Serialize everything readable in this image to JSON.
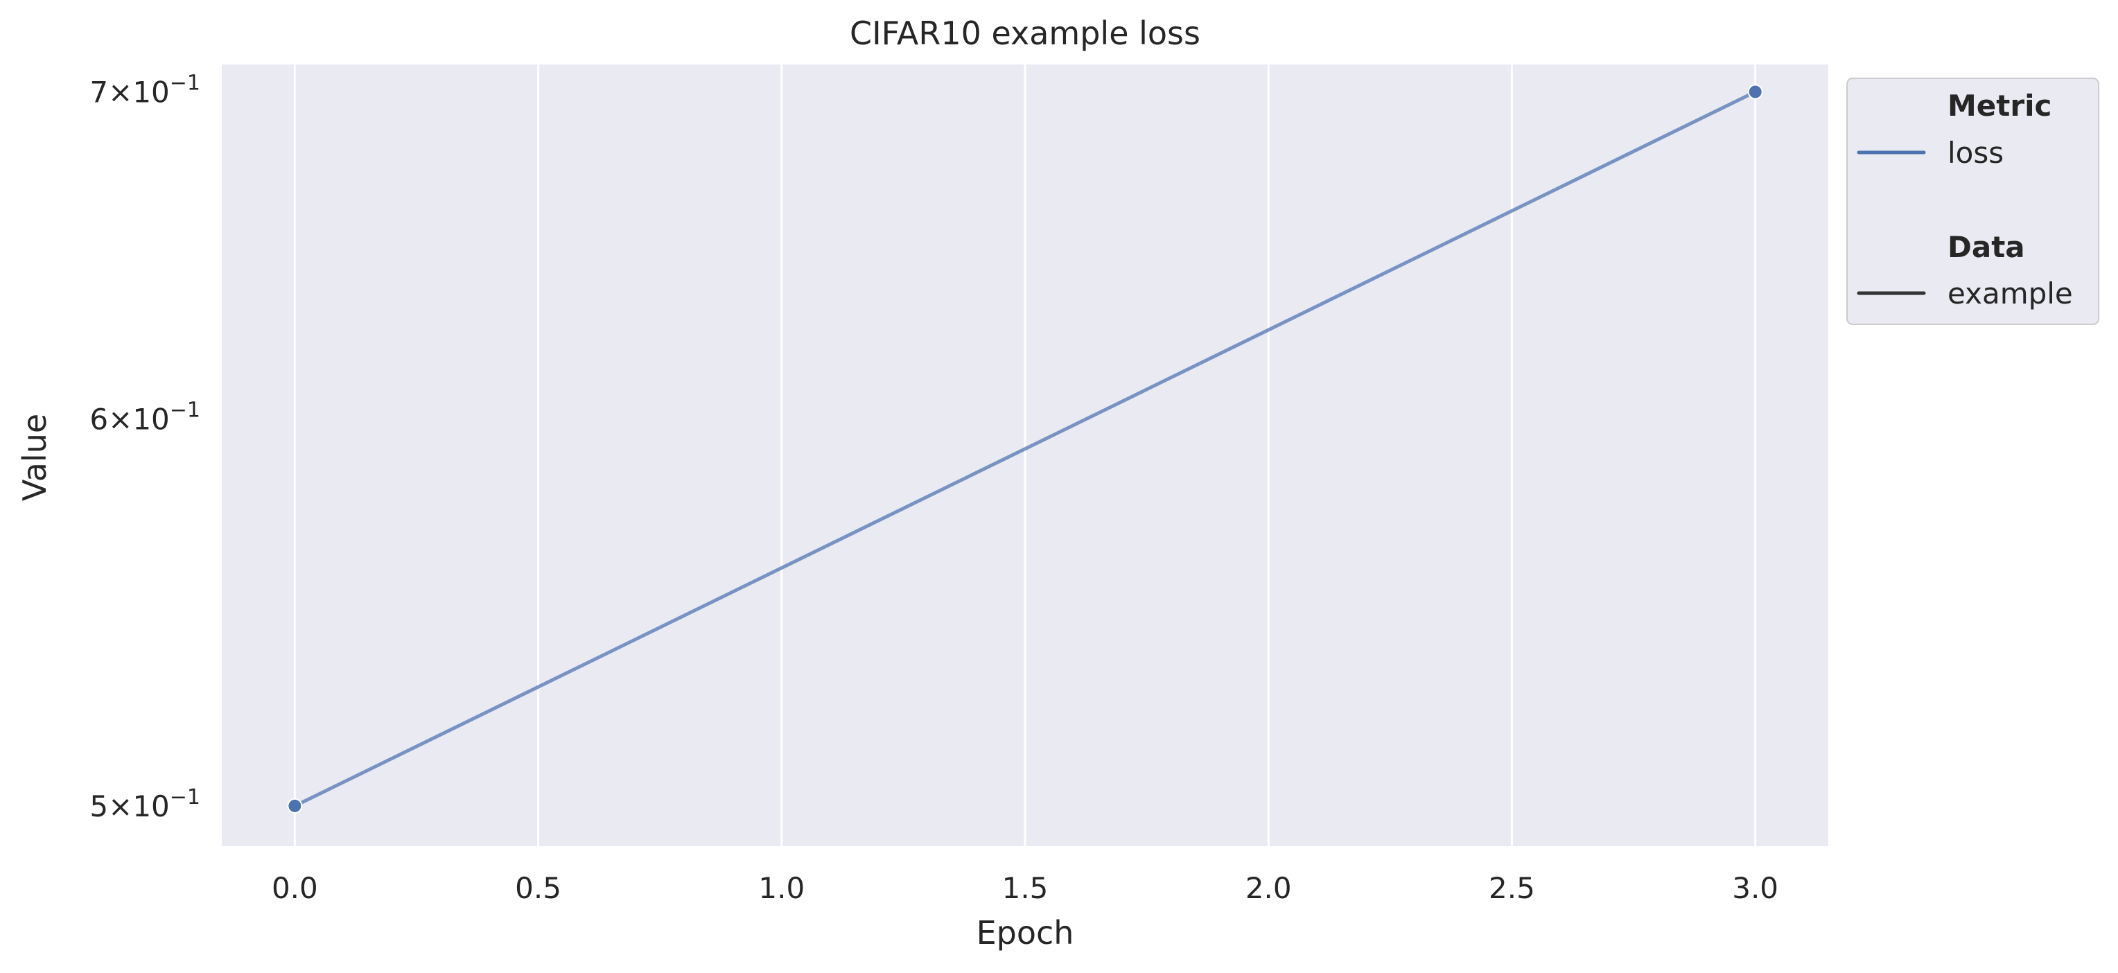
{
  "chart_data": {
    "type": "line",
    "title": "CIFAR10 example loss",
    "xlabel": "Epoch",
    "ylabel": "Value",
    "xlim": [
      -0.15,
      3.15
    ],
    "ylim": [
      0.4906,
      0.7091
    ],
    "yscale": "log",
    "grid": true,
    "x_ticks": [
      {
        "value": 0.0,
        "label": "0.0"
      },
      {
        "value": 0.5,
        "label": "0.5"
      },
      {
        "value": 1.0,
        "label": "1.0"
      },
      {
        "value": 1.5,
        "label": "1.5"
      },
      {
        "value": 2.0,
        "label": "2.0"
      },
      {
        "value": 2.5,
        "label": "2.5"
      },
      {
        "value": 3.0,
        "label": "3.0"
      }
    ],
    "y_ticks": [
      {
        "value": 0.5,
        "mantissa": "5",
        "base": "10",
        "exp": "−1"
      },
      {
        "value": 0.6,
        "mantissa": "6",
        "base": "10",
        "exp": "−1"
      },
      {
        "value": 0.7,
        "mantissa": "7",
        "base": "10",
        "exp": "−1"
      }
    ],
    "series": [
      {
        "name": "loss",
        "color": "#4c72b0",
        "x": [
          0,
          3
        ],
        "y": [
          0.5,
          0.7
        ]
      }
    ],
    "legend": {
      "placement": "outside-right-top",
      "metric_heading": "Metric",
      "metric_items": [
        {
          "label": "loss",
          "color": "#4c72b0"
        }
      ],
      "data_heading": "Data",
      "data_items": [
        {
          "label": "example",
          "color": "#333333"
        }
      ]
    },
    "colors": {
      "plot_background": "#eaeaf2",
      "grid": "#ffffff",
      "series": "#4c72b0"
    }
  }
}
